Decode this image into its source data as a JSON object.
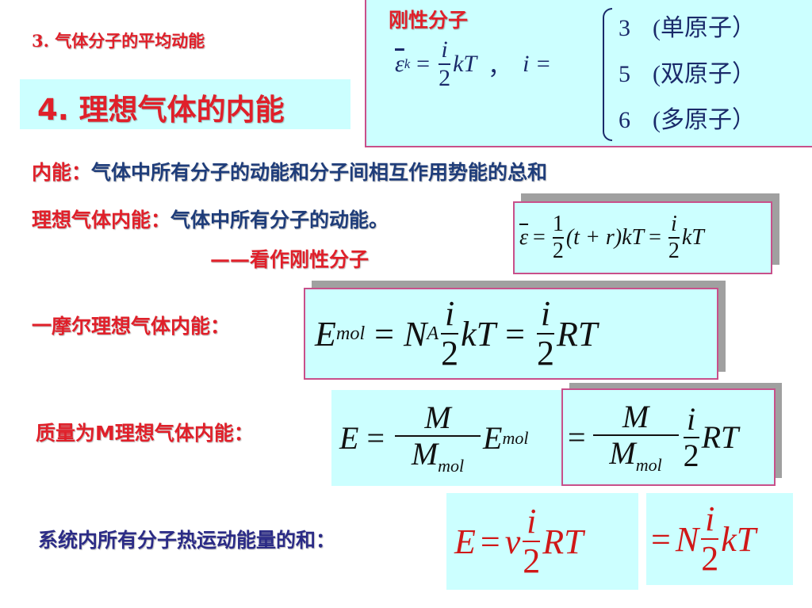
{
  "section3": "3. 气体分子的平均动能",
  "section4": "4. 理想气体的内能",
  "rigid": {
    "title": "刚性分子",
    "eps": "ε",
    "k": "k",
    "eq": "=",
    "i": "i",
    "two": "2",
    "kT": "kT",
    "comma": "，",
    "i_eq": "i =",
    "cases": [
      {
        "n": "3",
        "label": "(单原子）"
      },
      {
        "n": "5",
        "label": "(双原子）"
      },
      {
        "n": "6",
        "label": "(多原子）"
      }
    ]
  },
  "def": {
    "term": "内能：",
    "text": "气体中所有分子的动能和分子间相互作用势能的总和"
  },
  "ideal": {
    "term": "理想气体内能：",
    "text": "气体中所有分子的动能。",
    "note": "——看作刚性分子"
  },
  "f1": {
    "lhs": "ε",
    "eq": "=",
    "one": "1",
    "two": "2",
    "mid": "(t + r)kT",
    "i": "i",
    "kT": "kT"
  },
  "mol": {
    "label": "一摩尔理想气体内能：",
    "E": "E",
    "sub": "mol",
    "eq": "=",
    "N": "N",
    "A": "A",
    "i": "i",
    "two": "2",
    "kT": "kT",
    "RT": "RT"
  },
  "mass": {
    "label": "质量为M理想气体内能：",
    "E": "E",
    "eq": "=",
    "M": "M",
    "Mmol_sub": "mol",
    "Emol_sub": "mol",
    "i": "i",
    "two": "2",
    "RT": "RT"
  },
  "sys": {
    "label": "系统内所有分子热运动能量的和：",
    "E": "E",
    "eq": "=",
    "nu": "ν",
    "i": "i",
    "two": "2",
    "RT": "RT",
    "N": "N",
    "kT": "kT"
  },
  "colors": {
    "red": "#e0202a",
    "blue": "#1f3d7a",
    "box": "#ccffff",
    "border": "#c8508a"
  }
}
